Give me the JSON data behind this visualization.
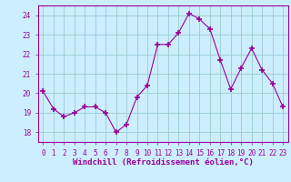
{
  "x": [
    0,
    1,
    2,
    3,
    4,
    5,
    6,
    7,
    8,
    9,
    10,
    11,
    12,
    13,
    14,
    15,
    16,
    17,
    18,
    19,
    20,
    21,
    22,
    23
  ],
  "y": [
    20.1,
    19.2,
    18.8,
    19.0,
    19.3,
    19.3,
    19.0,
    18.0,
    18.4,
    19.8,
    20.4,
    22.5,
    22.5,
    23.1,
    24.1,
    23.8,
    23.3,
    21.7,
    20.2,
    21.3,
    22.3,
    21.2,
    20.5,
    19.3
  ],
  "line_color": "#990099",
  "marker": "+",
  "marker_size": 4,
  "marker_lw": 1.2,
  "bg_color": "#cceeff",
  "grid_color": "#99cccc",
  "xlabel": "Windchill (Refroidissement éolien,°C)",
  "ylim": [
    17.5,
    24.5
  ],
  "yticks": [
    18,
    19,
    20,
    21,
    22,
    23,
    24
  ],
  "xticks": [
    0,
    1,
    2,
    3,
    4,
    5,
    6,
    7,
    8,
    9,
    10,
    11,
    12,
    13,
    14,
    15,
    16,
    17,
    18,
    19,
    20,
    21,
    22,
    23
  ],
  "tick_color": "#990099",
  "label_color": "#990099",
  "spine_color": "#990099",
  "xlabel_fontsize": 6.5,
  "tick_fontsize": 5.5,
  "line_width": 0.8
}
